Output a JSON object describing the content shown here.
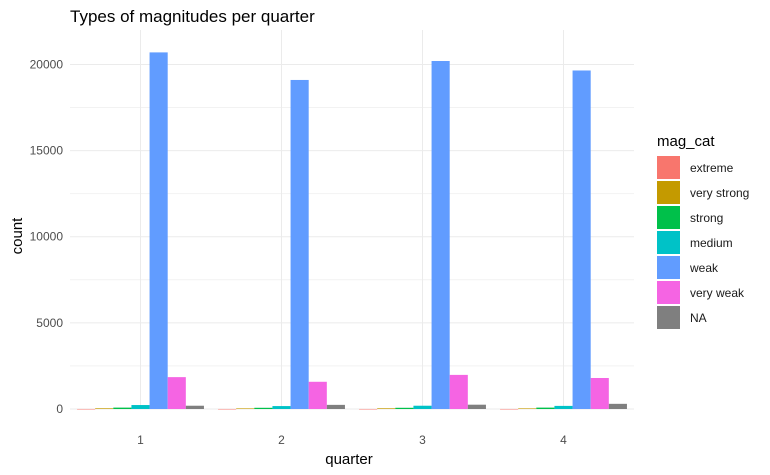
{
  "chart_data": {
    "type": "bar",
    "title": "Types of magnitudes per quarter",
    "xlabel": "quarter",
    "ylabel": "count",
    "categories": [
      "1",
      "2",
      "3",
      "4"
    ],
    "ylim": [
      0,
      22000
    ],
    "yticks": [
      0,
      5000,
      10000,
      15000,
      20000
    ],
    "ytick_labels": [
      "0",
      "5000",
      "10000",
      "15000",
      "20000"
    ],
    "grid": true,
    "legend": {
      "title": "mag_cat",
      "placement": "right"
    },
    "series": [
      {
        "name": "extreme",
        "color": "#F8766D",
        "values": [
          2,
          2,
          2,
          2
        ]
      },
      {
        "name": "very strong",
        "color": "#C49A00",
        "values": [
          40,
          35,
          40,
          35
        ]
      },
      {
        "name": "strong",
        "color": "#00C04A",
        "values": [
          80,
          70,
          70,
          80
        ]
      },
      {
        "name": "medium",
        "color": "#00C2C7",
        "values": [
          230,
          170,
          190,
          180
        ]
      },
      {
        "name": "weak",
        "color": "#619CFF",
        "values": [
          20700,
          19100,
          20200,
          19650
        ]
      },
      {
        "name": "very weak",
        "color": "#F564E3",
        "values": [
          1850,
          1580,
          1980,
          1800
        ]
      },
      {
        "name": "NA",
        "color": "#7F7F7F",
        "values": [
          190,
          240,
          250,
          300
        ]
      }
    ]
  }
}
